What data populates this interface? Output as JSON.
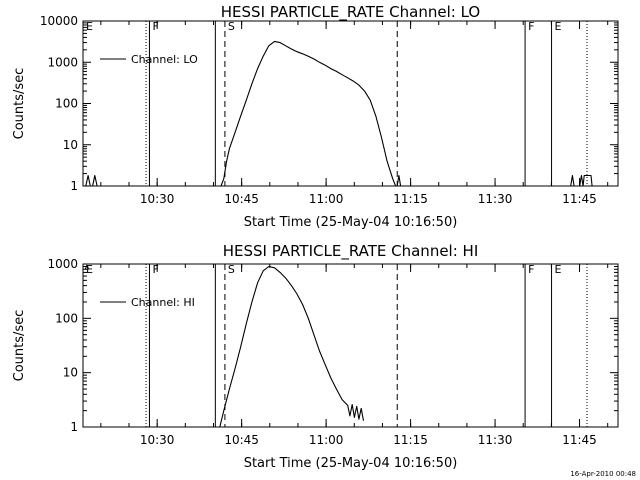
{
  "footer": {
    "timestamp": "16-Apr-2010 00:48"
  },
  "chart_data": [
    {
      "type": "line",
      "title": "HESSI PARTICLE_RATE Channel: LO",
      "xlabel": "Start Time (25-May-04 10:16:50)",
      "ylabel": "Counts/sec",
      "yscale": "log",
      "ylim": [
        1,
        10000
      ],
      "xlim_min_after_start": [
        0,
        95
      ],
      "x_ticks_min_after_start": [
        13.17,
        28.17,
        43.17,
        58.17,
        73.17,
        88.17
      ],
      "x_tick_labels": [
        "10:30",
        "10:45",
        "11:00",
        "11:15",
        "11:30",
        "11:45"
      ],
      "y_ticks": [
        1,
        10,
        100,
        1000,
        10000
      ],
      "y_tick_labels": [
        "1",
        "10",
        "100",
        "1000",
        "10000"
      ],
      "legend": {
        "label": "Channel: LO",
        "position": "top-left"
      },
      "vlines": [
        {
          "t": 0,
          "style": "solid",
          "label": "E"
        },
        {
          "t": 11.2,
          "style": "dotted",
          "label": ""
        },
        {
          "t": 11.8,
          "style": "solid",
          "label": "F"
        },
        {
          "t": 23.5,
          "style": "solid",
          "label": ""
        },
        {
          "t": 25.2,
          "style": "dashed",
          "label": "S"
        },
        {
          "t": 55.8,
          "style": "dashed",
          "label": ""
        },
        {
          "t": 78.5,
          "style": "solid",
          "label": "F"
        },
        {
          "t": 83.2,
          "style": "solid",
          "label": "E"
        },
        {
          "t": 89.5,
          "style": "dotted",
          "label": ""
        }
      ],
      "series": [
        {
          "name": "Channel: LO",
          "segments": [
            [
              [
                0.5,
                1
              ],
              [
                0.9,
                1.8
              ],
              [
                1.3,
                1
              ],
              [
                1.7,
                1
              ],
              [
                2.1,
                1.8
              ],
              [
                2.5,
                1
              ]
            ],
            [
              [
                24.5,
                1
              ],
              [
                25,
                1.5
              ],
              [
                25.5,
                4
              ],
              [
                26,
                8
              ],
              [
                27,
                20
              ],
              [
                28,
                50
              ],
              [
                29,
                120
              ],
              [
                30,
                300
              ],
              [
                31,
                700
              ],
              [
                32,
                1400
              ],
              [
                33,
                2500
              ],
              [
                34,
                3200
              ],
              [
                35,
                3000
              ],
              [
                36,
                2500
              ],
              [
                37,
                2100
              ],
              [
                38,
                1800
              ],
              [
                39,
                1600
              ],
              [
                40,
                1400
              ],
              [
                41,
                1200
              ],
              [
                42,
                1000
              ],
              [
                43,
                850
              ],
              [
                44,
                700
              ],
              [
                45,
                600
              ],
              [
                46,
                500
              ],
              [
                47,
                420
              ],
              [
                48,
                350
              ],
              [
                49,
                280
              ],
              [
                50,
                200
              ],
              [
                51,
                120
              ],
              [
                52,
                50
              ],
              [
                53,
                15
              ],
              [
                54,
                4
              ],
              [
                55,
                1.5
              ],
              [
                55.5,
                1
              ]
            ],
            [
              [
                55.8,
                1
              ],
              [
                56.1,
                1.8
              ],
              [
                56.4,
                1
              ]
            ],
            [
              [
                86.6,
                1
              ],
              [
                86.9,
                1.8
              ],
              [
                87.2,
                1
              ],
              [
                88.2,
                1
              ],
              [
                88.5,
                1.8
              ],
              [
                88.8,
                1
              ],
              [
                89,
                1.8
              ],
              [
                90.2,
                1.8
              ],
              [
                90.4,
                1
              ]
            ]
          ]
        }
      ]
    },
    {
      "type": "line",
      "title": "HESSI PARTICLE_RATE Channel: HI",
      "xlabel": "Start Time (25-May-04 10:16:50)",
      "ylabel": "Counts/sec",
      "yscale": "log",
      "ylim": [
        1,
        1000
      ],
      "xlim_min_after_start": [
        0,
        95
      ],
      "x_ticks_min_after_start": [
        13.17,
        28.17,
        43.17,
        58.17,
        73.17,
        88.17
      ],
      "x_tick_labels": [
        "10:30",
        "10:45",
        "11:00",
        "11:15",
        "11:30",
        "11:45"
      ],
      "y_ticks": [
        1,
        10,
        100,
        1000
      ],
      "y_tick_labels": [
        "1",
        "10",
        "100",
        "1000"
      ],
      "legend": {
        "label": "Channel: HI",
        "position": "top-left"
      },
      "vlines": [
        {
          "t": 0,
          "style": "solid",
          "label": "E"
        },
        {
          "t": 11.2,
          "style": "dotted",
          "label": ""
        },
        {
          "t": 11.8,
          "style": "solid",
          "label": "F"
        },
        {
          "t": 23.5,
          "style": "solid",
          "label": ""
        },
        {
          "t": 25.2,
          "style": "dashed",
          "label": "S"
        },
        {
          "t": 55.8,
          "style": "dashed",
          "label": ""
        },
        {
          "t": 78.5,
          "style": "solid",
          "label": "F"
        },
        {
          "t": 83.2,
          "style": "solid",
          "label": "E"
        },
        {
          "t": 89.5,
          "style": "dotted",
          "label": ""
        }
      ],
      "series": [
        {
          "name": "Channel: HI",
          "segments": [
            [
              [
                0.4,
                800
              ],
              [
                0.7,
                950
              ],
              [
                1,
                800
              ]
            ],
            [
              [
                24.3,
                1
              ],
              [
                25,
                2
              ],
              [
                26,
                5
              ],
              [
                27,
                12
              ],
              [
                28,
                30
              ],
              [
                29,
                80
              ],
              [
                30,
                200
              ],
              [
                31,
                450
              ],
              [
                32,
                750
              ],
              [
                33,
                900
              ],
              [
                34,
                850
              ],
              [
                35,
                700
              ],
              [
                36,
                550
              ],
              [
                37,
                400
              ],
              [
                38,
                280
              ],
              [
                39,
                180
              ],
              [
                40,
                100
              ],
              [
                41,
                50
              ],
              [
                42,
                25
              ],
              [
                43,
                14
              ],
              [
                44,
                8
              ],
              [
                45,
                5
              ],
              [
                46,
                3.2
              ],
              [
                47,
                2.5
              ],
              [
                47.4,
                1.6
              ],
              [
                47.8,
                2.6
              ],
              [
                48.2,
                1.5
              ],
              [
                48.6,
                2.4
              ],
              [
                49,
                1.4
              ],
              [
                49.4,
                2.2
              ],
              [
                49.8,
                1.3
              ]
            ]
          ]
        }
      ]
    }
  ]
}
